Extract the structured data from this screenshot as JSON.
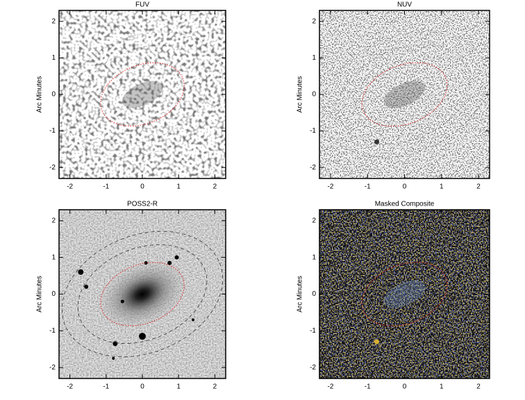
{
  "chart_data": [
    {
      "type": "image",
      "title": "FUV",
      "ylabel": "Arc Minutes",
      "style": "fuv",
      "xlim": [
        -2.3,
        2.3
      ],
      "ylim": [
        -2.3,
        2.3
      ],
      "xticks": [
        -2,
        -1,
        0,
        1,
        2
      ],
      "yticks": [
        -2,
        -1,
        0,
        1,
        2
      ]
    },
    {
      "type": "image",
      "title": "NUV",
      "ylabel": "Arc Minutes",
      "style": "nuv",
      "xlim": [
        -2.3,
        2.3
      ],
      "ylim": [
        -2.3,
        2.3
      ],
      "xticks": [
        -2,
        -1,
        0,
        1,
        2
      ],
      "yticks": [
        -2,
        -1,
        0,
        1,
        2
      ]
    },
    {
      "type": "image",
      "title": "POSS2-R",
      "ylabel": "Arc Minutes",
      "style": "poss",
      "xlim": [
        -2.3,
        2.3
      ],
      "ylim": [
        -2.3,
        2.3
      ],
      "xticks": [
        -2,
        -1,
        0,
        1,
        2
      ],
      "yticks": [
        -2,
        -1,
        0,
        1,
        2
      ]
    },
    {
      "type": "image",
      "title": "Masked Composite",
      "ylabel": "Arc Minutes",
      "style": "composite",
      "xlim": [
        -2.3,
        2.3
      ],
      "ylim": [
        -2.3,
        2.3
      ],
      "xticks": [
        -2,
        -1,
        0,
        1,
        2
      ],
      "yticks": [
        -2,
        -1,
        0,
        1,
        2
      ]
    }
  ]
}
